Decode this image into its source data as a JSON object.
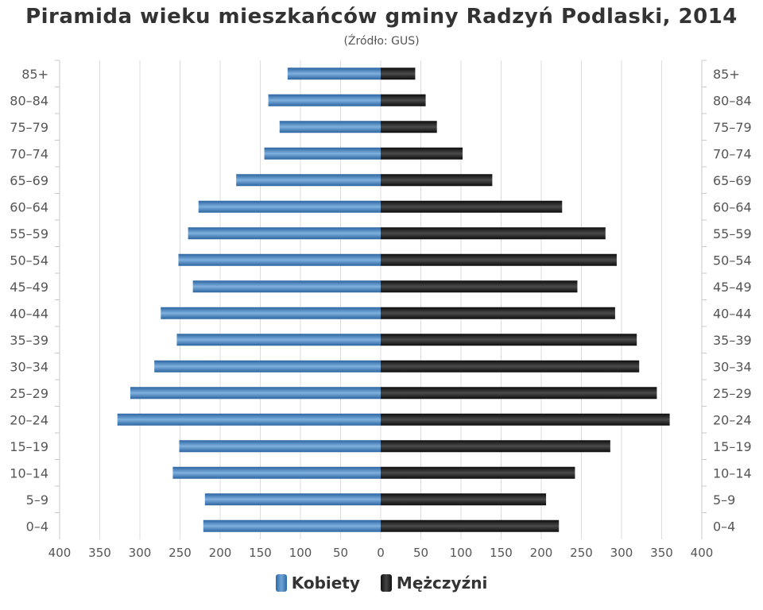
{
  "chart_data": {
    "type": "bar",
    "title": "Piramida wieku mieszkańców gminy Radzyń Podlaski, 2014",
    "subtitle": "(Źródło: GUS)",
    "categories": [
      "85+",
      "80–84",
      "75–79",
      "70–74",
      "65–69",
      "60–64",
      "55–59",
      "50–54",
      "45–49",
      "40–44",
      "35–39",
      "30–34",
      "25–29",
      "20–24",
      "15–19",
      "10–14",
      "5–9",
      "0–4"
    ],
    "series": [
      {
        "name": "Kobiety",
        "values": [
          116,
          140,
          126,
          145,
          180,
          227,
          240,
          252,
          234,
          274,
          254,
          282,
          312,
          328,
          251,
          259,
          219,
          221
        ]
      },
      {
        "name": "Mężczyźni",
        "values": [
          43,
          56,
          70,
          102,
          139,
          226,
          280,
          294,
          245,
          292,
          319,
          322,
          344,
          360,
          286,
          242,
          206,
          222
        ]
      }
    ],
    "xlim": [
      -400,
      400
    ],
    "x_ticks": [
      "400",
      "350",
      "300",
      "250",
      "200",
      "150",
      "100",
      "50",
      "0",
      "50",
      "100",
      "150",
      "200",
      "250",
      "300",
      "350",
      "400"
    ],
    "grid": true,
    "legend_position": "bottom",
    "colors": {
      "women": "#3a78b8",
      "men": "#1a1a1a",
      "grid": "#dddddd"
    }
  }
}
